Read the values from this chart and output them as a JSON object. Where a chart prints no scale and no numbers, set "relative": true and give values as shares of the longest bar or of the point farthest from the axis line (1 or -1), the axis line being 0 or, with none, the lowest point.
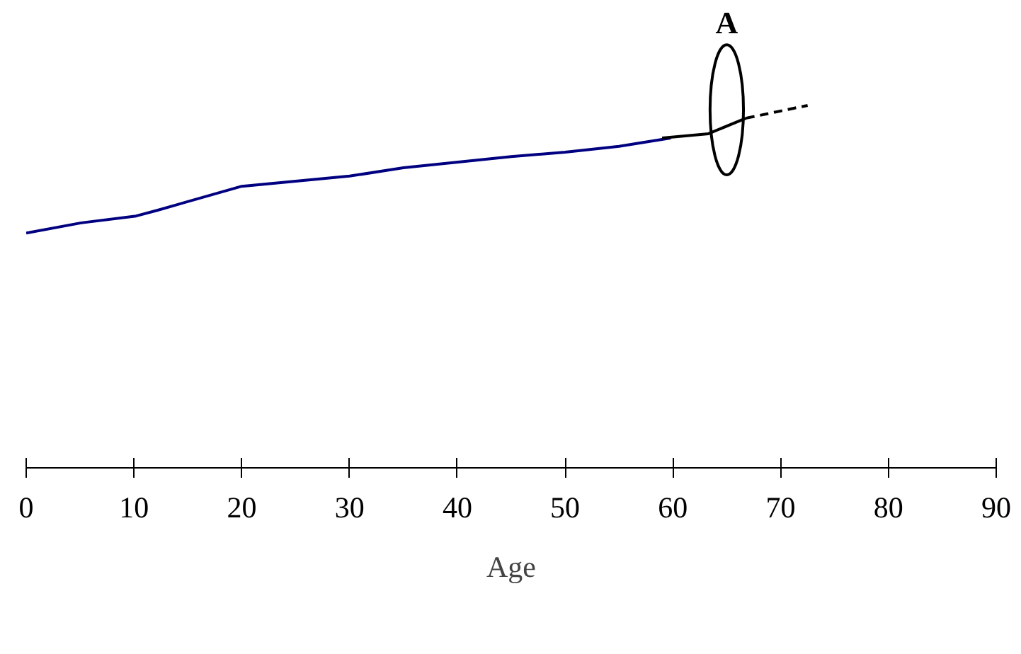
{
  "chart_data": {
    "type": "line",
    "xlabel": "Age",
    "relative": true,
    "xlim": [
      0,
      90
    ],
    "xticks": [
      0,
      10,
      20,
      30,
      40,
      50,
      60,
      70,
      80,
      90
    ],
    "grid": false,
    "marker": "none",
    "series": [
      {
        "color": "#000080",
        "x": [
          0,
          5.1,
          10.2,
          12.2,
          20,
          30,
          35,
          45,
          50,
          55,
          59.8
        ],
        "values": [
          0.648,
          0.676,
          0.695,
          0.711,
          0.777,
          0.805,
          0.828,
          0.859,
          0.871,
          0.887,
          0.91
        ]
      },
      {
        "color": "#000000",
        "x": [
          59,
          63.3,
          66.8
        ],
        "values": [
          0.91,
          0.922,
          0.965
        ]
      },
      {
        "color": "#000000",
        "x": [
          66.8,
          72.5
        ],
        "values": [
          0.965,
          1.0
        ],
        "line_style": "dashed"
      }
    ],
    "annotations": [
      {
        "text": "A",
        "x": 65,
        "y": 0.94
      }
    ]
  }
}
